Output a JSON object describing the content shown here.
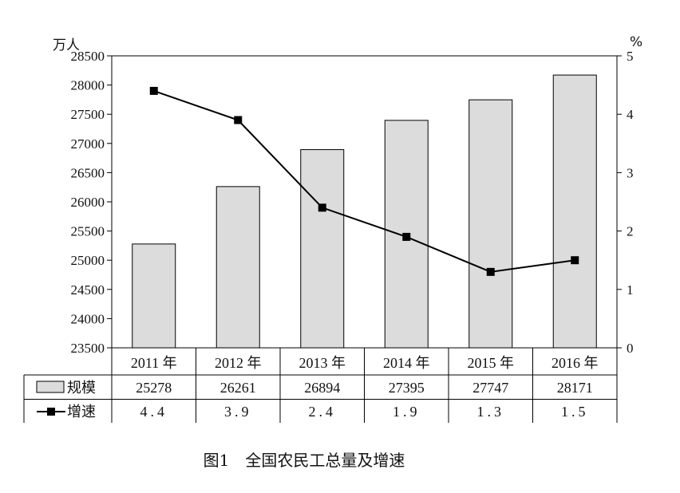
{
  "chart_data": {
    "type": "bar",
    "categories": [
      "2011 年",
      "2012 年",
      "2013 年",
      "2014 年",
      "2015 年",
      "2016 年"
    ],
    "series": [
      {
        "name": "规模",
        "type": "bar",
        "axis": "left",
        "values": [
          25278,
          26261,
          26894,
          27395,
          27747,
          28171
        ],
        "value_labels": [
          "25278",
          "26261",
          "26894",
          "27395",
          "27747",
          "28171"
        ]
      },
      {
        "name": "增速",
        "type": "line",
        "axis": "right",
        "values": [
          4.4,
          3.9,
          2.4,
          1.9,
          1.3,
          1.5
        ],
        "value_labels": [
          "4.4",
          "3.9",
          "2.4",
          "1.9",
          "1.3",
          "1.5"
        ]
      }
    ],
    "left_axis": {
      "unit": "万人",
      "ylim": [
        23500,
        28500
      ],
      "ticks": [
        "23500",
        "24000",
        "24500",
        "25000",
        "25500",
        "26000",
        "26500",
        "27000",
        "27500",
        "28000",
        "28500"
      ]
    },
    "right_axis": {
      "unit": "%",
      "ylim": [
        0,
        5
      ],
      "ticks": [
        "0",
        "1",
        "2",
        "3",
        "4",
        "5"
      ]
    },
    "caption": "图1　全国农民工总量及增速",
    "colors": {
      "bar_fill": "#dcdcdc",
      "stroke": "#000000"
    }
  }
}
